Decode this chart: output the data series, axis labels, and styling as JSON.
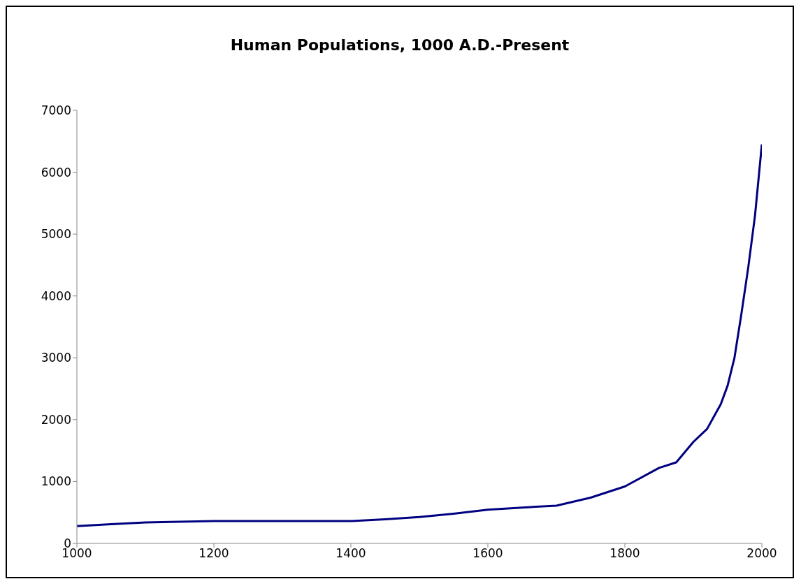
{
  "chart_data": {
    "type": "line",
    "title": "Human Populations, 1000 A.D.-Present",
    "x": [
      1000,
      1050,
      1100,
      1150,
      1200,
      1300,
      1400,
      1450,
      1500,
      1550,
      1600,
      1650,
      1700,
      1750,
      1800,
      1850,
      1875,
      1900,
      1920,
      1940,
      1950,
      1960,
      1970,
      1980,
      1990,
      2000
    ],
    "series": [
      {
        "color": "#000080",
        "values": [
          280,
          310,
          340,
          350,
          360,
          360,
          360,
          390,
          425,
          480,
          545,
          580,
          610,
          740,
          920,
          1220,
          1310,
          1640,
          1850,
          2250,
          2550,
          3000,
          3700,
          4450,
          5300,
          6450
        ]
      }
    ],
    "xlim": [
      1000,
      2000
    ],
    "xticks": [
      1000,
      1200,
      1400,
      1600,
      1800,
      2000
    ],
    "ylim": [
      0,
      7000
    ],
    "yticks": [
      0,
      1000,
      2000,
      3000,
      4000,
      5000,
      6000,
      7000
    ],
    "grid": false,
    "legend": false,
    "marker": "none",
    "line_style": "solid"
  }
}
